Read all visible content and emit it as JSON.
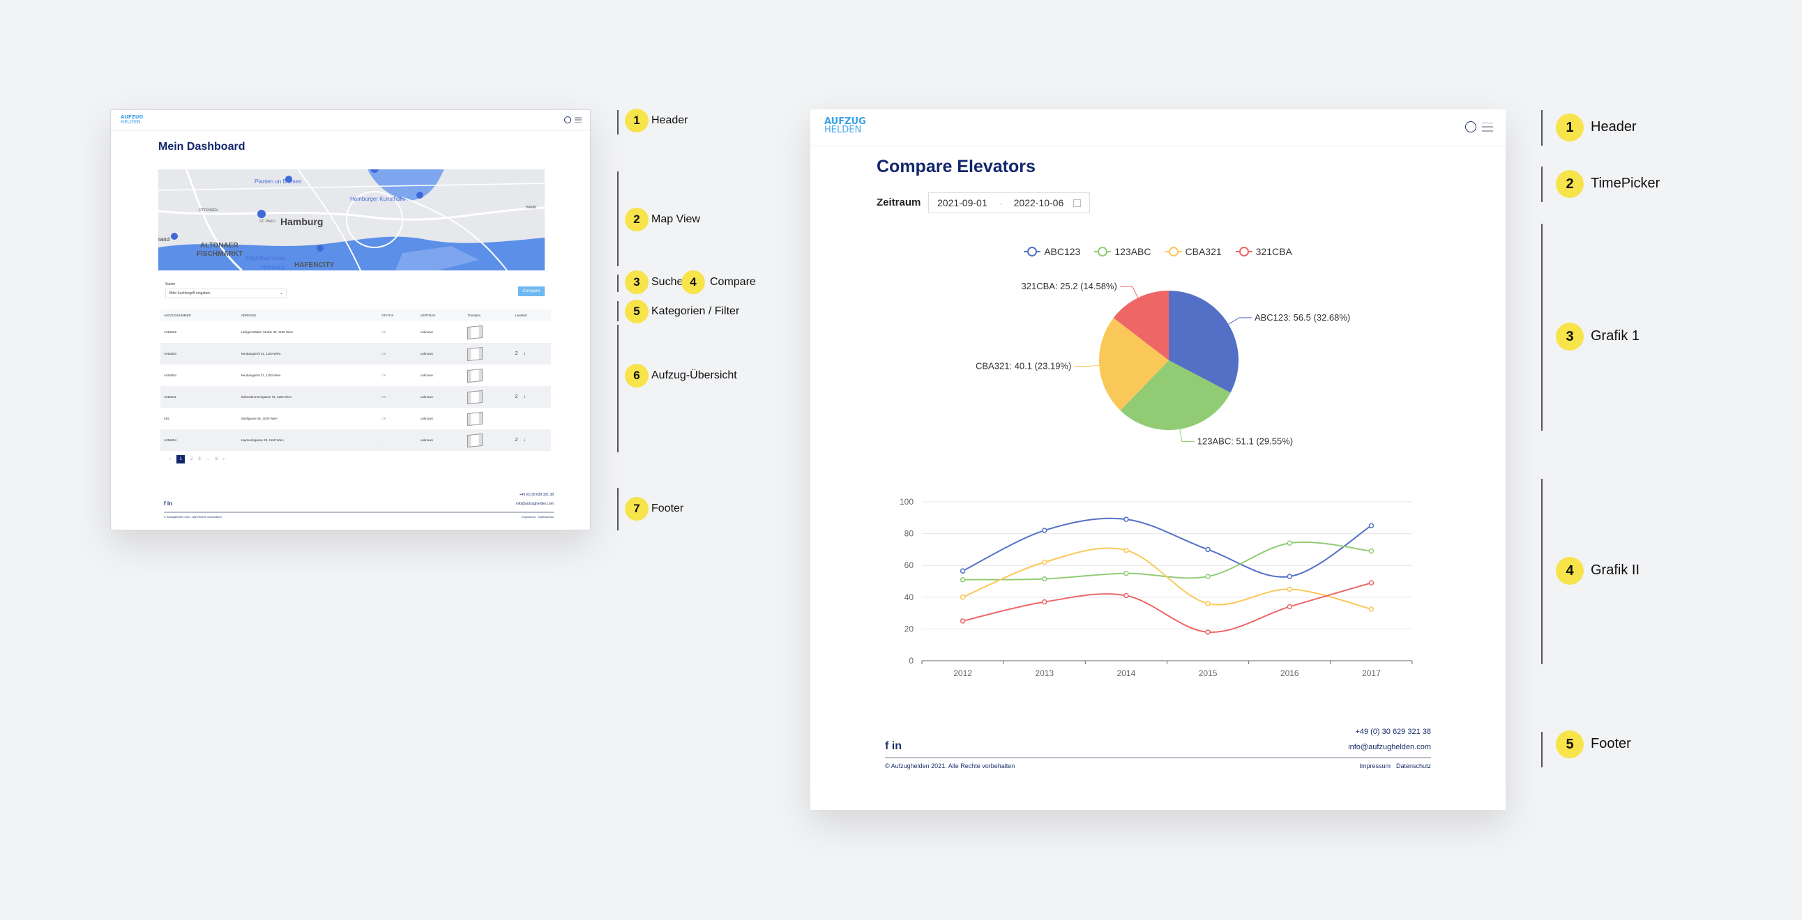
{
  "left_panel": {
    "logo": {
      "line1": "AUFZUG",
      "line2": "HELDEN"
    },
    "title": "Mein Dashboard",
    "map": {
      "labels": [
        "Planten un Blomen",
        "Hamburger Kunsthalle",
        "OTTENSEN",
        "ST. PAULI",
        "Hamburg",
        "rand",
        "ALTONAER",
        "FISCHMARKT",
        "Elbphilharmonie",
        "Hamburg",
        "HAFENCITY",
        "HAMM",
        "4",
        "75",
        "7",
        "4",
        "4"
      ]
    },
    "search": {
      "label": "Suche",
      "placeholder": "Bitte Suchbegriff eingeben"
    },
    "compare_label": "Compare",
    "table": {
      "columns": [
        "AUFZUGNUMMER",
        "ADRESSE",
        "STATUS",
        "VERTRAG",
        "Türstatus",
        "Livefahrt"
      ],
      "rows": [
        {
          "id": "A016568",
          "address": "Heiligenstädter Straße 38, 1190 Wien",
          "status": "OK",
          "contract": "unknown",
          "live": "",
          "arrow": ""
        },
        {
          "id": "A016803",
          "address": "Neubaugürtel 31, 1150 Wien",
          "status": "OK",
          "contract": "unknown",
          "live": "2",
          "arrow": "↓"
        },
        {
          "id": "A016804",
          "address": "Neubaugürtel 31, 1150 Wien",
          "status": "OK",
          "contract": "unknown",
          "live": "",
          "arrow": ""
        },
        {
          "id": "A016811",
          "address": "Siebenbrunnengasse 75, 1150 Wien",
          "status": "OK",
          "contract": "unknown",
          "live": "2",
          "arrow": "↓"
        },
        {
          "id": "615",
          "address": "Seidlgasse 36, 1030 Wien",
          "status": "OK",
          "contract": "unknown",
          "live": "",
          "arrow": ""
        },
        {
          "id": "A016854",
          "address": "Haymerlegasse 28, 1160 Wien",
          "status": "-",
          "contract": "unknown",
          "live": "2",
          "arrow": "↓"
        }
      ]
    },
    "pagination": {
      "prev": "‹",
      "pages": [
        "1",
        "2",
        "3",
        "...",
        "8"
      ],
      "current": "1",
      "next": "›"
    },
    "footer": {
      "phone": "+49 (0) 30 629 321 38",
      "email": "info@aufzughelden.com",
      "social": "f in",
      "copyright": "© Aufzughelden 2021. Alle Rechte vorbehalten",
      "impressum": "Impressum",
      "datenschutz": "Datenschutz"
    }
  },
  "left_annotations": [
    {
      "num": "1",
      "label": "Header"
    },
    {
      "num": "2",
      "label": "Map View"
    },
    {
      "num": "3",
      "label": "Suche",
      "num2": "4",
      "label2": "Compare"
    },
    {
      "num": "5",
      "label": "Kategorien / Filter"
    },
    {
      "num": "6",
      "label": "Aufzug-Übersicht"
    },
    {
      "num": "7",
      "label": "Footer"
    }
  ],
  "right_panel": {
    "logo": {
      "line1": "AUFZUG",
      "line2": "HELDEN"
    },
    "title": "Compare Elevators",
    "timepicker": {
      "label": "Zeitraum",
      "start": "2021-09-01",
      "separator": "→",
      "end": "2022-10-06"
    },
    "footer": {
      "phone": "+49 (0) 30 629 321 38",
      "email": "info@aufzughelden.com",
      "social": "f in",
      "copyright": "© Aufzughelden 2021. Alle Rechte vorbehalten",
      "impressum": "Impressum",
      "datenschutz": "Datenschutz"
    }
  },
  "right_annotations": [
    {
      "num": "1",
      "label": "Header"
    },
    {
      "num": "2",
      "label": "TimePicker"
    },
    {
      "num": "3",
      "label": "Grafik 1"
    },
    {
      "num": "4",
      "label": "Grafik II"
    },
    {
      "num": "5",
      "label": "Footer"
    }
  ],
  "colors": {
    "ABC123": "#5470c6",
    "123ABC": "#91cc75",
    "CBA321": "#fac858",
    "321CBA": "#ee6666",
    "brand": "#12266b",
    "accent": "#6cb8f0",
    "badge": "#f7e34a"
  },
  "chart_data": [
    {
      "type": "pie",
      "legend": [
        "ABC123",
        "123ABC",
        "CBA321",
        "321CBA"
      ],
      "legend_position": "top",
      "slices": [
        {
          "name": "ABC123",
          "value": 56.5,
          "percent": "32.68%"
        },
        {
          "name": "123ABC",
          "value": 51.1,
          "percent": "29.55%"
        },
        {
          "name": "CBA321",
          "value": 40.1,
          "percent": "23.19%"
        },
        {
          "name": "321CBA",
          "value": 25.2,
          "percent": "14.58%"
        }
      ]
    },
    {
      "type": "line",
      "smooth": true,
      "x": [
        "2012",
        "2013",
        "2014",
        "2015",
        "2016",
        "2017"
      ],
      "yticks": [
        "0",
        "20",
        "40",
        "60",
        "80",
        "100"
      ],
      "ylim": [
        0,
        100
      ],
      "grid": "horizontal",
      "series": [
        {
          "name": "ABC123",
          "values": [
            56.5,
            82,
            89,
            70,
            53,
            85
          ]
        },
        {
          "name": "123ABC",
          "values": [
            51,
            51.5,
            55,
            53,
            74,
            69
          ]
        },
        {
          "name": "CBA321",
          "values": [
            40,
            62,
            69.5,
            36,
            45,
            32.5
          ]
        },
        {
          "name": "321CBA",
          "values": [
            25,
            37,
            41,
            18,
            34,
            49
          ]
        }
      ]
    }
  ]
}
